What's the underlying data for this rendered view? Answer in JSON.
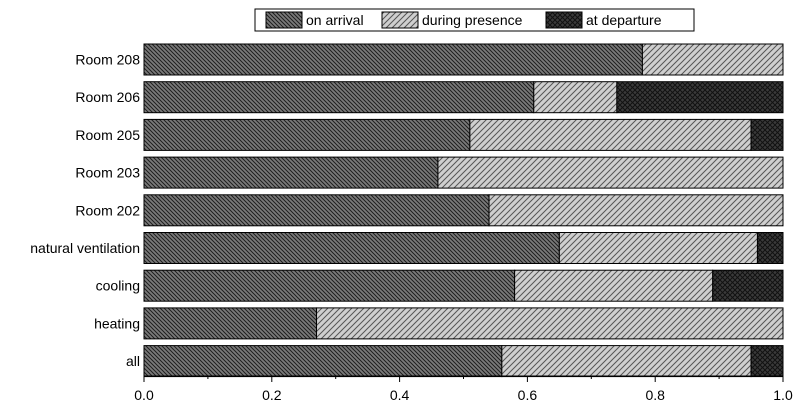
{
  "chart_data": {
    "type": "bar",
    "orientation": "horizontal",
    "stacked": true,
    "categories": [
      "Room 208",
      "Room 206",
      "Room 205",
      "Room 203",
      "Room 202",
      "natural ventilation",
      "cooling",
      "heating",
      "all"
    ],
    "series": [
      {
        "name": "on arrival",
        "values": [
          0.78,
          0.61,
          0.51,
          0.46,
          0.54,
          0.65,
          0.58,
          0.27,
          0.56
        ],
        "color": "#7a7a7a",
        "pattern": "dense-diagonal"
      },
      {
        "name": "during presence",
        "values": [
          0.22,
          0.13,
          0.44,
          0.54,
          0.46,
          0.31,
          0.31,
          0.73,
          0.39
        ],
        "color": "#c8c8c8",
        "pattern": "wide-diagonal"
      },
      {
        "name": "at departure",
        "values": [
          0.0,
          0.26,
          0.05,
          0.0,
          0.0,
          0.04,
          0.11,
          0.0,
          0.05
        ],
        "color": "#3a3a3a",
        "pattern": "crosshatch"
      }
    ],
    "xlim": [
      0,
      1
    ],
    "xticks": [
      "0.0",
      "0.2",
      "0.4",
      "0.6",
      "0.8",
      "1.0"
    ],
    "xlabel": "",
    "ylabel": "",
    "title": "",
    "grid": false,
    "legend_position": "top-center"
  }
}
